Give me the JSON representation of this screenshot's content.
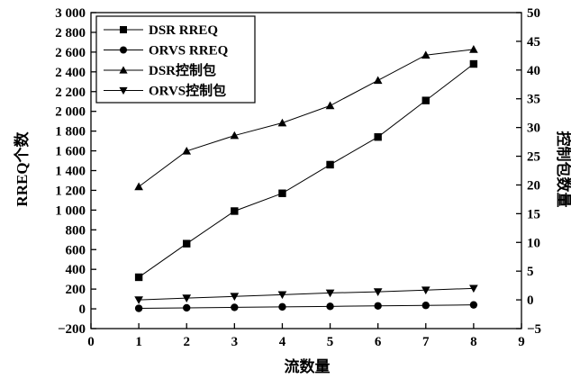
{
  "chart_data": {
    "type": "line",
    "xlabel": "流数量",
    "ylabel": "RREQ个数",
    "y2label": "控制包数量",
    "xlim": [
      0,
      9
    ],
    "ylim": [
      -200,
      3000
    ],
    "y2lim": [
      -5,
      50
    ],
    "x_ticks": [
      "0",
      "1",
      "2",
      "3",
      "4",
      "5",
      "6",
      "7",
      "8",
      "9"
    ],
    "y_ticks": [
      "−200",
      "0",
      "200",
      "400",
      "600",
      "800",
      "1 000",
      "1 200",
      "1 400",
      "1 600",
      "1 800",
      "2 000",
      "2 200",
      "2 400",
      "2 600",
      "2 800",
      "3 000"
    ],
    "y2_ticks": [
      "−5",
      "0",
      "5",
      "10",
      "15",
      "20",
      "25",
      "30",
      "35",
      "40",
      "45",
      "50"
    ],
    "x": [
      1,
      2,
      3,
      4,
      5,
      6,
      7,
      8
    ],
    "legend_position": "top-left",
    "grid": false,
    "series": [
      {
        "name": "DSR RREQ",
        "axis": "left",
        "marker": "square",
        "values": [
          320,
          660,
          990,
          1170,
          1460,
          1740,
          2110,
          2480
        ]
      },
      {
        "name": "ORVS RREQ",
        "axis": "left",
        "marker": "circle",
        "values": [
          5,
          10,
          15,
          20,
          25,
          30,
          35,
          40
        ]
      },
      {
        "name": "DSR控制包",
        "axis": "right",
        "marker": "triangle-up",
        "values": [
          19.7,
          25.9,
          28.6,
          30.8,
          33.8,
          38.2,
          42.6,
          43.6
        ]
      },
      {
        "name": "ORVS控制包",
        "axis": "right",
        "marker": "triangle-down",
        "values": [
          0.0,
          0.3,
          0.6,
          0.9,
          1.2,
          1.4,
          1.7,
          2.0
        ]
      }
    ]
  }
}
